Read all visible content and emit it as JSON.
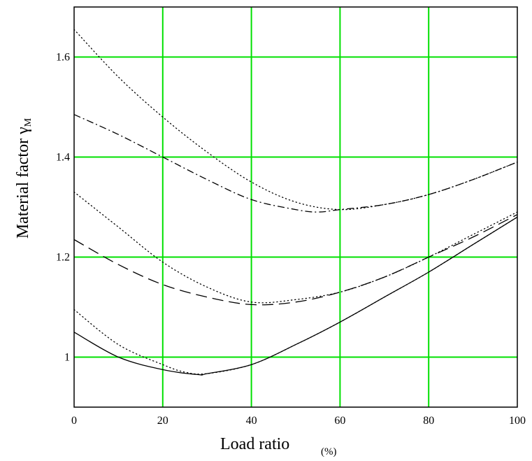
{
  "chart_data": {
    "type": "line",
    "xlabel": "Load ratio",
    "xunit": "(%)",
    "ylabel_main": "Material factor ",
    "ylabel_symbol": "γ",
    "ylabel_subscript": "M",
    "xlim": [
      0,
      100
    ],
    "ylim": [
      0.9,
      1.7
    ],
    "x_ticks": [
      "0",
      "20",
      "40",
      "60",
      "80",
      "100"
    ],
    "y_ticks": [
      "1",
      "1.2",
      "1.4",
      "1.6"
    ],
    "grid": true,
    "grid_color": "#00e000",
    "series": [
      {
        "style": "dotted",
        "x": [
          0,
          10,
          20,
          30,
          40,
          50,
          60,
          70,
          80,
          90,
          100
        ],
        "y": [
          1.655,
          1.56,
          1.48,
          1.41,
          1.35,
          1.31,
          1.295,
          1.305,
          1.325,
          1.355,
          1.39
        ]
      },
      {
        "style": "dash-dot",
        "x": [
          0,
          10,
          20,
          30,
          40,
          50,
          55,
          60,
          70,
          80,
          90,
          100
        ],
        "y": [
          1.485,
          1.445,
          1.4,
          1.355,
          1.315,
          1.295,
          1.29,
          1.295,
          1.305,
          1.325,
          1.355,
          1.39
        ]
      },
      {
        "style": "dotted",
        "x": [
          0,
          10,
          20,
          30,
          40,
          50,
          60,
          70,
          80,
          90,
          100
        ],
        "y": [
          1.33,
          1.26,
          1.19,
          1.14,
          1.11,
          1.115,
          1.13,
          1.16,
          1.2,
          1.245,
          1.29
        ]
      },
      {
        "style": "long-dash",
        "x": [
          0,
          10,
          20,
          30,
          40,
          50,
          60,
          70,
          80,
          90,
          100
        ],
        "y": [
          1.235,
          1.185,
          1.145,
          1.12,
          1.105,
          1.11,
          1.13,
          1.16,
          1.2,
          1.24,
          1.285
        ]
      },
      {
        "style": "dotted",
        "x": [
          0,
          10,
          20,
          25,
          30,
          40,
          50,
          60,
          70,
          80,
          90,
          100
        ],
        "y": [
          1.095,
          1.025,
          0.985,
          0.97,
          0.967,
          0.985,
          1.025,
          1.07,
          1.12,
          1.17,
          1.225,
          1.28
        ]
      },
      {
        "style": "solid",
        "x": [
          0,
          10,
          20,
          28,
          30,
          40,
          50,
          60,
          70,
          80,
          90,
          100
        ],
        "y": [
          1.05,
          1.0,
          0.975,
          0.965,
          0.967,
          0.985,
          1.025,
          1.07,
          1.12,
          1.17,
          1.225,
          1.28
        ]
      }
    ]
  }
}
